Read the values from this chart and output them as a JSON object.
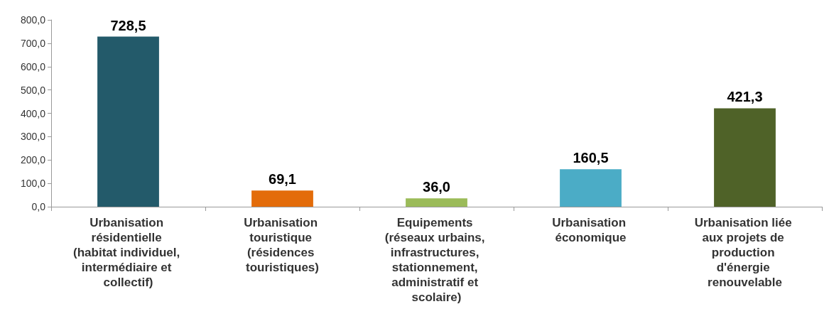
{
  "chart_data": {
    "type": "bar",
    "categories": [
      "Urbanisation résidentielle (habitat individuel, intermédiaire et collectif)",
      "Urbanisation touristique (résidences touristiques)",
      "Equipements (réseaux urbains, infrastructures, stationnement, administratif et scolaire)",
      "Urbanisation économique",
      "Urbanisation liée aux projets de production d'énergie renouvelable"
    ],
    "values": [
      728.5,
      69.1,
      36.0,
      160.5,
      421.3
    ],
    "colors": [
      "#235a6a",
      "#e36c0a",
      "#9bbb59",
      "#4bacc6",
      "#4f6228"
    ],
    "value_labels": [
      "728,5",
      "69,1",
      "36,0",
      "160,5",
      "421,3"
    ],
    "ylim": [
      0,
      800
    ],
    "yticks": [
      {
        "value": 0,
        "label": "0,0"
      },
      {
        "value": 100,
        "label": "100,0"
      },
      {
        "value": 200,
        "label": "200,0"
      },
      {
        "value": 300,
        "label": "300,0"
      },
      {
        "value": 400,
        "label": "400,0"
      },
      {
        "value": 500,
        "label": "500,0"
      },
      {
        "value": 600,
        "label": "600,0"
      },
      {
        "value": 700,
        "label": "700,0"
      },
      {
        "value": 800,
        "label": "800,0"
      }
    ],
    "grid": false
  }
}
